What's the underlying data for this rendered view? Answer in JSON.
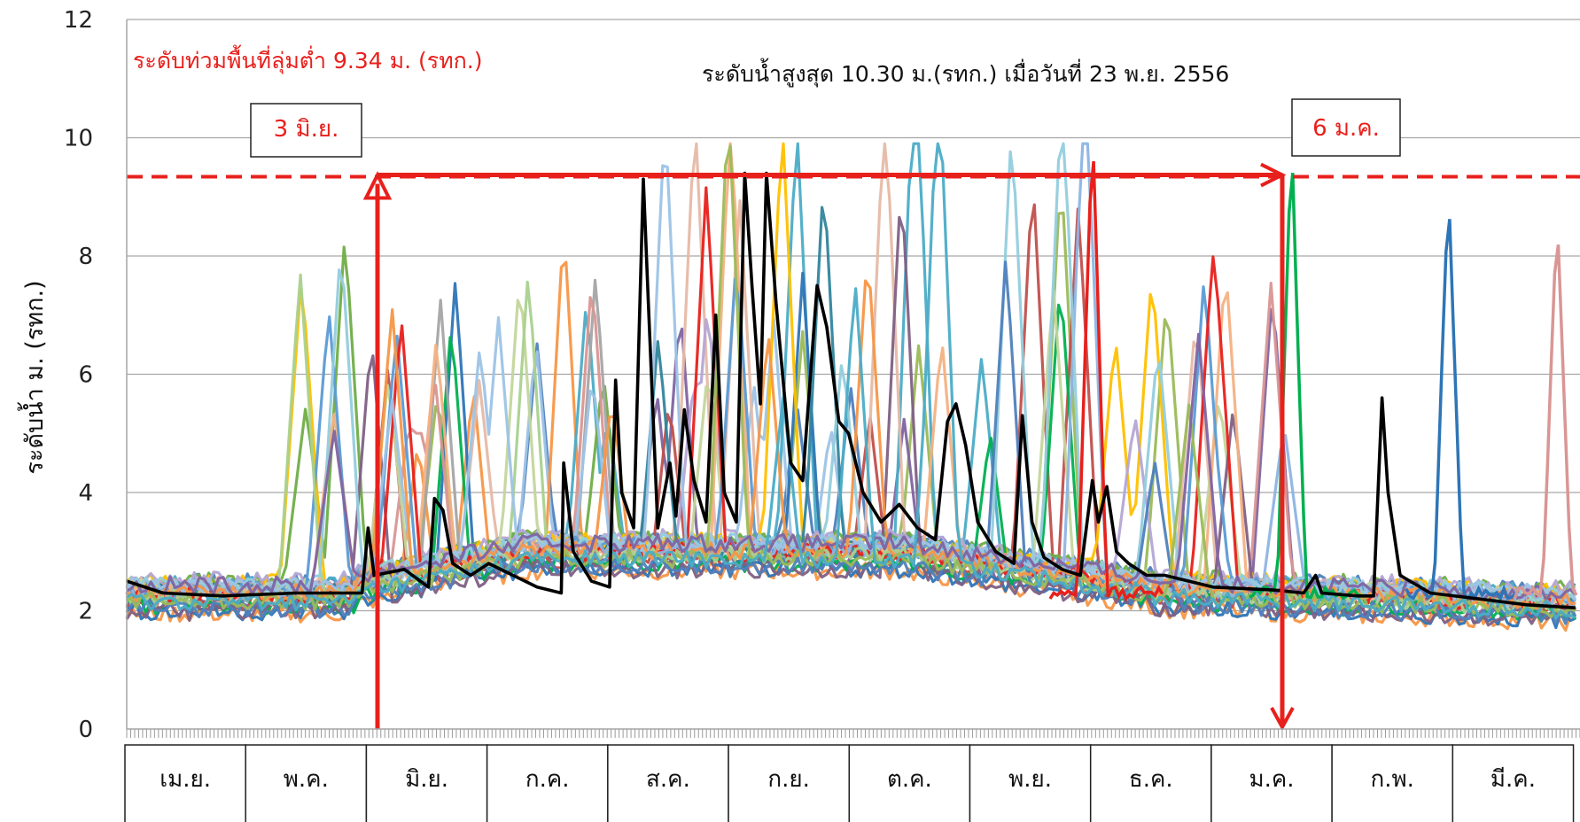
{
  "chart_data": {
    "type": "line",
    "ylabel": "ระดับน้ำ ม. (รทก.)",
    "ylim": [
      0,
      12
    ],
    "yticks": [
      "0",
      "2",
      "4",
      "6",
      "8",
      "10",
      "12"
    ],
    "categories": [
      "เม.ย.",
      "พ.ค.",
      "มิ.ย.",
      "ก.ค.",
      "ส.ค.",
      "ก.ย.",
      "ต.ค.",
      "พ.ย.",
      "ธ.ค.",
      "ม.ค.",
      "ก.พ.",
      "มี.ค."
    ],
    "grid": true,
    "threshold": {
      "value": 9.34,
      "color": "#e8201c",
      "style": "dashed"
    },
    "annotations": {
      "threshold_text": "ระดับท่วมพื้นที่ลุ่มต่ำ 9.34 ม. (รทก.)",
      "max_text": "ระดับน้ำสูงสุด 10.30 ม.(รทก.) เมื่อวันที่ 23 พ.ย. 2556",
      "start_box": "3 มิ.ย.",
      "end_box": "6 ม.ค."
    },
    "highlight_series": {
      "color": "#000000",
      "points": [
        [
          0.0,
          2.5
        ],
        [
          0.3,
          2.3
        ],
        [
          0.8,
          2.25
        ],
        [
          1.4,
          2.3
        ],
        [
          1.95,
          2.3
        ],
        [
          2.0,
          3.4
        ],
        [
          2.05,
          2.6
        ],
        [
          2.3,
          2.7
        ],
        [
          2.5,
          2.4
        ],
        [
          2.55,
          3.9
        ],
        [
          2.62,
          3.7
        ],
        [
          2.7,
          2.8
        ],
        [
          2.85,
          2.6
        ],
        [
          3.0,
          2.8
        ],
        [
          3.2,
          2.6
        ],
        [
          3.4,
          2.4
        ],
        [
          3.6,
          2.3
        ],
        [
          3.62,
          4.5
        ],
        [
          3.7,
          3.0
        ],
        [
          3.85,
          2.5
        ],
        [
          4.0,
          2.4
        ],
        [
          4.05,
          5.9
        ],
        [
          4.1,
          4.0
        ],
        [
          4.2,
          3.4
        ],
        [
          4.28,
          9.3
        ],
        [
          4.32,
          7.3
        ],
        [
          4.4,
          3.4
        ],
        [
          4.5,
          4.5
        ],
        [
          4.55,
          3.6
        ],
        [
          4.62,
          5.4
        ],
        [
          4.7,
          4.2
        ],
        [
          4.8,
          3.5
        ],
        [
          4.88,
          7.0
        ],
        [
          4.95,
          4.0
        ],
        [
          5.05,
          3.5
        ],
        [
          5.12,
          9.4
        ],
        [
          5.18,
          7.5
        ],
        [
          5.25,
          5.5
        ],
        [
          5.3,
          9.4
        ],
        [
          5.38,
          7.2
        ],
        [
          5.5,
          4.5
        ],
        [
          5.6,
          4.2
        ],
        [
          5.72,
          7.5
        ],
        [
          5.8,
          6.8
        ],
        [
          5.9,
          5.2
        ],
        [
          5.98,
          5.0
        ],
        [
          6.1,
          4.0
        ],
        [
          6.25,
          3.5
        ],
        [
          6.4,
          3.8
        ],
        [
          6.55,
          3.4
        ],
        [
          6.7,
          3.2
        ],
        [
          6.8,
          5.2
        ],
        [
          6.87,
          5.5
        ],
        [
          6.95,
          4.8
        ],
        [
          7.05,
          3.5
        ],
        [
          7.2,
          3.0
        ],
        [
          7.35,
          2.8
        ],
        [
          7.42,
          5.3
        ],
        [
          7.5,
          3.5
        ],
        [
          7.6,
          2.9
        ],
        [
          7.75,
          2.7
        ],
        [
          7.9,
          2.6
        ],
        [
          8.0,
          4.2
        ],
        [
          8.05,
          3.5
        ],
        [
          8.12,
          4.1
        ],
        [
          8.2,
          3.0
        ],
        [
          8.3,
          2.8
        ],
        [
          8.45,
          2.6
        ],
        [
          8.6,
          2.6
        ],
        [
          8.8,
          2.5
        ],
        [
          9.0,
          2.4
        ],
        [
          9.5,
          2.35
        ],
        [
          9.75,
          2.3
        ],
        [
          9.85,
          2.6
        ],
        [
          9.9,
          2.3
        ],
        [
          10.2,
          2.25
        ],
        [
          10.33,
          2.25
        ],
        [
          10.4,
          5.6
        ],
        [
          10.45,
          4.0
        ],
        [
          10.55,
          2.6
        ],
        [
          10.8,
          2.3
        ],
        [
          11.2,
          2.2
        ],
        [
          11.6,
          2.1
        ],
        [
          12.0,
          2.05
        ]
      ]
    }
  }
}
